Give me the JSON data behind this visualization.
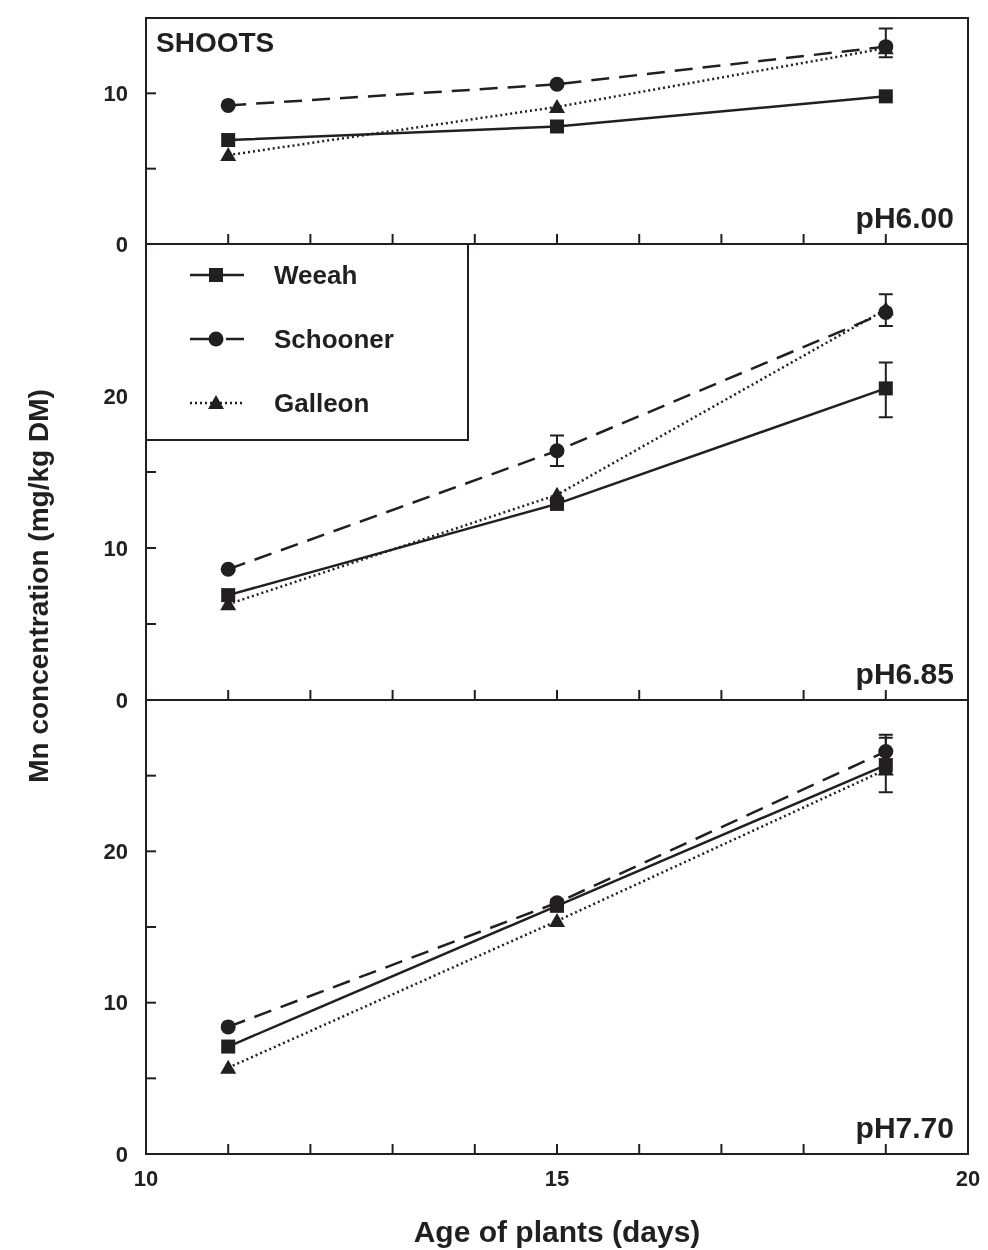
{
  "chart_data": [
    {
      "type": "line",
      "annotations": [
        "SHOOTS",
        "pH6.00"
      ],
      "xlim": [
        10,
        20
      ],
      "xticks": [
        {
          "value": 10,
          "label": null
        },
        {
          "value": 11,
          "label": null
        },
        {
          "value": 12,
          "label": null
        },
        {
          "value": 13,
          "label": null
        },
        {
          "value": 14,
          "label": null
        },
        {
          "value": 15,
          "label": null
        },
        {
          "value": 16,
          "label": null
        },
        {
          "value": 17,
          "label": null
        },
        {
          "value": 18,
          "label": null
        },
        {
          "value": 19,
          "label": null
        },
        {
          "value": 20,
          "label": null
        }
      ],
      "ylim": [
        0,
        15
      ],
      "yticks": [
        0,
        {
          "value": 5,
          "label": null
        },
        10
      ],
      "tick_labels": "y",
      "grid": false,
      "legend": false,
      "x": [
        11,
        15,
        19
      ],
      "series": [
        {
          "color": "#231f20",
          "marker": "square",
          "line_style": "solid",
          "values": [
            6.9,
            7.8,
            9.8
          ]
        },
        {
          "color": "#231f20",
          "marker": "circle",
          "line_style": "dashed",
          "values": [
            9.2,
            10.6,
            13.1
          ],
          "errors": [
            null,
            null,
            [
              12.4,
              14.3
            ]
          ]
        },
        {
          "color": "#231f20",
          "marker": "triangle",
          "line_style": "dotted",
          "values": [
            5.9,
            9.1,
            13.0
          ]
        }
      ]
    },
    {
      "type": "line",
      "ylabel": "Mn concentration (mg/kg DM)",
      "annotations": [
        "pH6.85"
      ],
      "xlim": [
        10,
        20
      ],
      "xticks": [
        {
          "value": 10,
          "label": null
        },
        {
          "value": 11,
          "label": null
        },
        {
          "value": 12,
          "label": null
        },
        {
          "value": 13,
          "label": null
        },
        {
          "value": 14,
          "label": null
        },
        {
          "value": 15,
          "label": null
        },
        {
          "value": 16,
          "label": null
        },
        {
          "value": 17,
          "label": null
        },
        {
          "value": 18,
          "label": null
        },
        {
          "value": 19,
          "label": null
        },
        {
          "value": 20,
          "label": null
        }
      ],
      "ylim": [
        0,
        30
      ],
      "yticks": [
        0,
        {
          "value": 5,
          "label": null
        },
        10,
        {
          "value": 15,
          "label": null
        },
        20,
        {
          "value": 25,
          "label": null
        }
      ],
      "tick_labels": "y",
      "grid": false,
      "legend": "top left",
      "x": [
        11,
        15,
        19
      ],
      "series": [
        {
          "name": "Weeah",
          "color": "#231f20",
          "marker": "square",
          "line_style": "solid",
          "values": [
            6.9,
            12.9,
            20.5
          ],
          "errors": [
            null,
            null,
            [
              18.6,
              22.2
            ]
          ]
        },
        {
          "name": "Schooner",
          "color": "#231f20",
          "marker": "circle",
          "line_style": "dashed",
          "values": [
            8.6,
            16.4,
            25.5
          ],
          "errors": [
            null,
            1,
            [
              24.6,
              26.7
            ]
          ]
        },
        {
          "name": "Galleon",
          "color": "#231f20",
          "marker": "triangle",
          "line_style": "dotted",
          "values": [
            6.3,
            13.5,
            25.7
          ]
        }
      ]
    },
    {
      "type": "line",
      "xlabel": "Age of plants (days)",
      "annotations": [
        "pH7.70"
      ],
      "xlim": [
        10,
        20
      ],
      "xticks": [
        10,
        {
          "value": 11,
          "label": null
        },
        {
          "value": 12,
          "label": null
        },
        {
          "value": 13,
          "label": null
        },
        {
          "value": 14,
          "label": null
        },
        15,
        {
          "value": 16,
          "label": null
        },
        {
          "value": 17,
          "label": null
        },
        {
          "value": 18,
          "label": null
        },
        {
          "value": 19,
          "label": null
        },
        20
      ],
      "ylim": [
        0,
        30
      ],
      "yticks": [
        0,
        {
          "value": 5,
          "label": null
        },
        10,
        {
          "value": 15,
          "label": null
        },
        20,
        {
          "value": 25,
          "label": null
        }
      ],
      "grid": false,
      "legend": false,
      "x": [
        11,
        15,
        19
      ],
      "series": [
        {
          "color": "#231f20",
          "marker": "square",
          "line_style": "solid",
          "values": [
            7.1,
            16.4,
            25.7
          ],
          "errors": [
            null,
            null,
            [
              23.9,
              27.5
            ]
          ]
        },
        {
          "color": "#231f20",
          "marker": "circle",
          "line_style": "dashed",
          "values": [
            8.4,
            16.6,
            26.6
          ],
          "errors": [
            null,
            null,
            [
              26.6,
              27.7
            ]
          ]
        },
        {
          "color": "#231f20",
          "marker": "triangle",
          "line_style": "dotted",
          "values": [
            5.7,
            15.4,
            25.4
          ]
        }
      ]
    }
  ]
}
